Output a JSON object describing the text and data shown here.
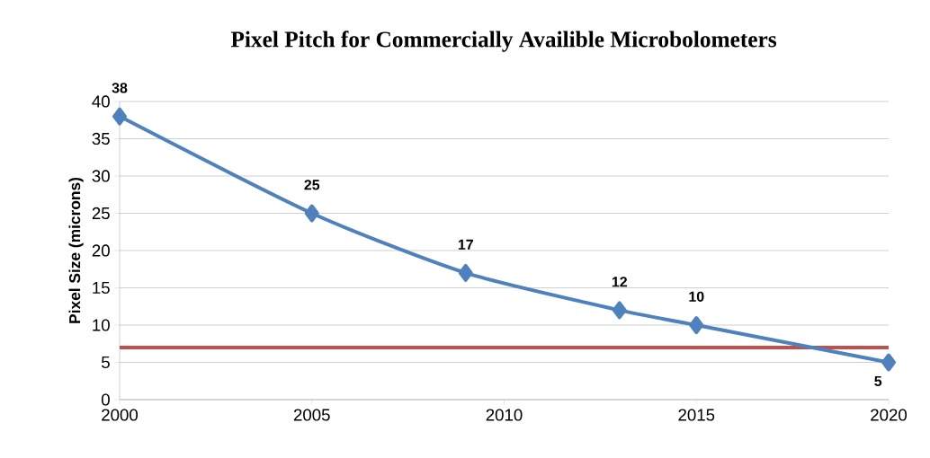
{
  "chart_data": {
    "type": "line",
    "title": "Pixel Pitch for  Commercially Availible Microbolometers",
    "ylabel": "Pixel Size (microns)",
    "xlim": [
      2000,
      2020
    ],
    "xticks": [
      2000,
      2005,
      2010,
      2015,
      2020
    ],
    "ylim": [
      0,
      40
    ],
    "yticks": [
      0,
      5,
      10,
      15,
      20,
      25,
      30,
      35,
      40
    ],
    "grid": "y",
    "marker": "diamond",
    "line_style": "solid",
    "data_labels": true,
    "series": [
      {
        "color": "#4f81bd",
        "x": [
          2000,
          2005,
          2009,
          2013,
          2015,
          2020
        ],
        "values": [
          38,
          25,
          17,
          12,
          10,
          5
        ]
      }
    ],
    "ref_lines": [
      {
        "axis": "y",
        "value": 7,
        "color": "#c0504d"
      }
    ]
  }
}
